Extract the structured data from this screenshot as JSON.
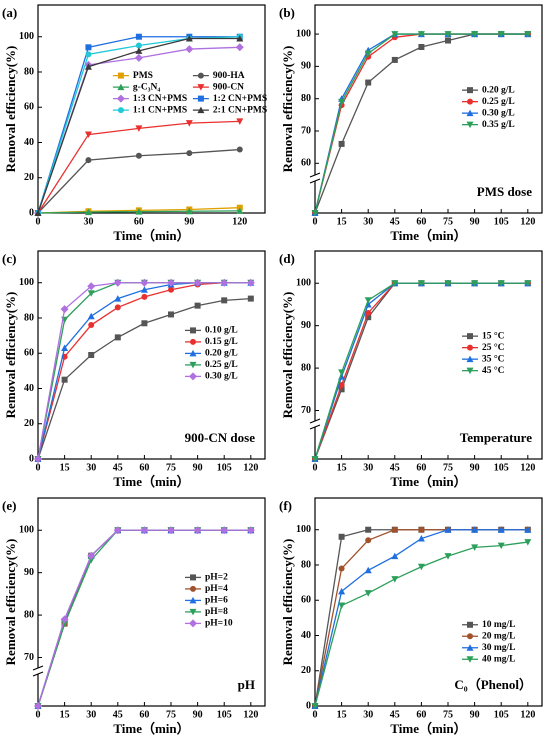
{
  "chart_data": [
    {
      "type": "line",
      "label": "(a)",
      "xlabel": "Time（min）",
      "ylabel": "Removal efficiency(%)",
      "x": [
        0,
        30,
        60,
        90,
        120
      ],
      "xlim": [
        0,
        135
      ],
      "xticks": [
        0,
        30,
        60,
        90,
        120
      ],
      "ylim": [
        0,
        118
      ],
      "yticks": [
        0,
        20,
        40,
        60,
        80,
        100
      ],
      "legend": "center",
      "legend_columns": 2,
      "series": [
        {
          "name": "PMS",
          "color": "#e0a000",
          "values": [
            0,
            1,
            1.5,
            2,
            3
          ]
        },
        {
          "name": "900-HA",
          "color": "#555555",
          "values": [
            0,
            30,
            32.5,
            34,
            36
          ]
        },
        {
          "name": "g-C₃N₄",
          "color": "#2ca05a",
          "values": [
            0,
            0.5,
            0.8,
            1,
            1.2
          ]
        },
        {
          "name": "900-CN",
          "color": "#e8312f",
          "values": [
            0,
            44.5,
            48,
            51,
            52
          ]
        },
        {
          "name": "1:3 CN+PMS",
          "color": "#b070e0",
          "values": [
            0,
            84,
            88,
            93,
            94
          ]
        },
        {
          "name": "1:2 CN+PMS",
          "color": "#1f6fe0",
          "values": [
            0,
            94,
            100,
            100,
            100
          ]
        },
        {
          "name": "1:1 CN+PMS",
          "color": "#20c8d8",
          "values": [
            0,
            90,
            95,
            99,
            100
          ]
        },
        {
          "name": "2:1 CN+PMS",
          "color": "#3a3a3a",
          "values": [
            0,
            83,
            92,
            99,
            99
          ]
        }
      ]
    },
    {
      "type": "line",
      "label": "(b)",
      "xlabel": "Time（min）",
      "ylabel": "Removal efficiency(%)",
      "annotation": "PMS dose",
      "x": [
        0,
        15,
        30,
        45,
        60,
        75,
        90,
        105,
        120
      ],
      "xlim": [
        0,
        128
      ],
      "xticks": [
        0,
        15,
        30,
        45,
        60,
        75,
        90,
        105,
        120
      ],
      "ylim": [
        0,
        109
      ],
      "ybreak": 57,
      "yticks": [
        60,
        70,
        80,
        90,
        100
      ],
      "legend": "center right",
      "series": [
        {
          "name": "0.20 g/L",
          "color": "#555555",
          "values": [
            0,
            66,
            85,
            92,
            96,
            98,
            100,
            100,
            100
          ]
        },
        {
          "name": "0.25 g/L",
          "color": "#e8312f",
          "values": [
            0,
            78,
            93,
            99,
            100,
            100,
            100,
            100,
            100
          ]
        },
        {
          "name": "0.30 g/L",
          "color": "#1f6fe0",
          "values": [
            0,
            80,
            95,
            100,
            100,
            100,
            100,
            100,
            100
          ]
        },
        {
          "name": "0.35 g/L",
          "color": "#2ca05a",
          "values": [
            0,
            79,
            94,
            100,
            100,
            100,
            100,
            100,
            100
          ]
        }
      ]
    },
    {
      "type": "line",
      "label": "(c)",
      "xlabel": "Time（min）",
      "ylabel": "Removal efficiency(%)",
      "annotation": "900-CN dose",
      "x": [
        0,
        15,
        30,
        45,
        60,
        75,
        90,
        105,
        120
      ],
      "xlim": [
        0,
        128
      ],
      "xticks": [
        0,
        15,
        30,
        45,
        60,
        75,
        90,
        105,
        120
      ],
      "ylim": [
        0,
        118
      ],
      "yticks": [
        0,
        20,
        40,
        60,
        80,
        100
      ],
      "legend": "center right",
      "series": [
        {
          "name": "0.10 g/L",
          "color": "#555555",
          "values": [
            0,
            45,
            59,
            69,
            77,
            82,
            87,
            90,
            91
          ]
        },
        {
          "name": "0.15 g/L",
          "color": "#e8312f",
          "values": [
            0,
            58,
            76,
            86,
            92,
            96,
            99,
            100,
            100
          ]
        },
        {
          "name": "0.20 g/L",
          "color": "#1f6fe0",
          "values": [
            0,
            63,
            81,
            91,
            96,
            99,
            100,
            100,
            100
          ]
        },
        {
          "name": "0.25 g/L",
          "color": "#2ca05a",
          "values": [
            0,
            79,
            94,
            100,
            100,
            100,
            100,
            100,
            100
          ]
        },
        {
          "name": "0.30 g/L",
          "color": "#b070e0",
          "values": [
            0,
            85,
            98,
            100,
            100,
            100,
            100,
            100,
            100
          ]
        }
      ]
    },
    {
      "type": "line",
      "label": "(d)",
      "xlabel": "Time（min）",
      "ylabel": "Removal efficiency(%)",
      "annotation": "Temperature",
      "x": [
        0,
        15,
        30,
        45,
        60,
        75,
        90,
        105,
        120
      ],
      "xlim": [
        0,
        128
      ],
      "xticks": [
        0,
        15,
        30,
        45,
        60,
        75,
        90,
        105,
        120
      ],
      "ylim": [
        0,
        107.6
      ],
      "ybreak": 68,
      "yticks": [
        70,
        80,
        90,
        100
      ],
      "legend": "center right",
      "series": [
        {
          "name": "15 °C",
          "color": "#555555",
          "values": [
            0,
            75,
            92,
            100,
            100,
            100,
            100,
            100,
            100
          ]
        },
        {
          "name": "25 °C",
          "color": "#e8312f",
          "values": [
            0,
            76,
            93,
            100,
            100,
            100,
            100,
            100,
            100
          ]
        },
        {
          "name": "35 °C",
          "color": "#1f6fe0",
          "values": [
            0,
            78,
            95,
            100,
            100,
            100,
            100,
            100,
            100
          ]
        },
        {
          "name": "45 °C",
          "color": "#2ca05a",
          "values": [
            0,
            79,
            96,
            100,
            100,
            100,
            100,
            100,
            100
          ]
        }
      ]
    },
    {
      "type": "line",
      "label": "(e)",
      "xlabel": "Time（min）",
      "ylabel": "Removal efficiency(%)",
      "annotation": "pH",
      "x": [
        0,
        15,
        30,
        45,
        60,
        75,
        90,
        105,
        120
      ],
      "xlim": [
        0,
        128
      ],
      "xticks": [
        0,
        15,
        30,
        45,
        60,
        75,
        90,
        105,
        120
      ],
      "ylim": [
        0,
        107.6
      ],
      "ybreak": 68,
      "yticks": [
        70,
        80,
        90,
        100
      ],
      "legend": "center right",
      "series": [
        {
          "name": "pH=2",
          "color": "#555555",
          "values": [
            0,
            78,
            94,
            100,
            100,
            100,
            100,
            100,
            100
          ]
        },
        {
          "name": "pH=4",
          "color": "#a0522d",
          "values": [
            0,
            78,
            94,
            100,
            100,
            100,
            100,
            100,
            100
          ]
        },
        {
          "name": "pH=6",
          "color": "#1f6fe0",
          "values": [
            0,
            79,
            94,
            100,
            100,
            100,
            100,
            100,
            100
          ]
        },
        {
          "name": "pH=8",
          "color": "#2ca05a",
          "values": [
            0,
            78,
            93,
            100,
            100,
            100,
            100,
            100,
            100
          ]
        },
        {
          "name": "pH=10",
          "color": "#b070e0",
          "values": [
            0,
            79,
            94,
            100,
            100,
            100,
            100,
            100,
            100
          ]
        }
      ]
    },
    {
      "type": "line",
      "label": "(f)",
      "xlabel": "Time（min）",
      "ylabel": "Removal efficiency(%)",
      "annotation": "C₀（Phenol）",
      "x": [
        0,
        15,
        30,
        45,
        60,
        75,
        90,
        105,
        120
      ],
      "xlim": [
        0,
        128
      ],
      "xticks": [
        0,
        15,
        30,
        45,
        60,
        75,
        90,
        105,
        120
      ],
      "ylim": [
        0,
        118
      ],
      "yticks": [
        0,
        20,
        40,
        60,
        80,
        100
      ],
      "legend": "lower right",
      "series": [
        {
          "name": "10 mg/L",
          "color": "#555555",
          "values": [
            0,
            96,
            100,
            100,
            100,
            100,
            100,
            100,
            100
          ]
        },
        {
          "name": "20 mg/L",
          "color": "#a0522d",
          "values": [
            0,
            78,
            94,
            100,
            100,
            100,
            100,
            100,
            100
          ]
        },
        {
          "name": "30 mg/L",
          "color": "#1f6fe0",
          "values": [
            0,
            65,
            77,
            85,
            95,
            100,
            100,
            100,
            100
          ]
        },
        {
          "name": "40 mg/L",
          "color": "#2ca05a",
          "values": [
            0,
            57,
            64,
            72,
            79,
            85,
            90,
            91,
            93
          ]
        }
      ]
    }
  ]
}
